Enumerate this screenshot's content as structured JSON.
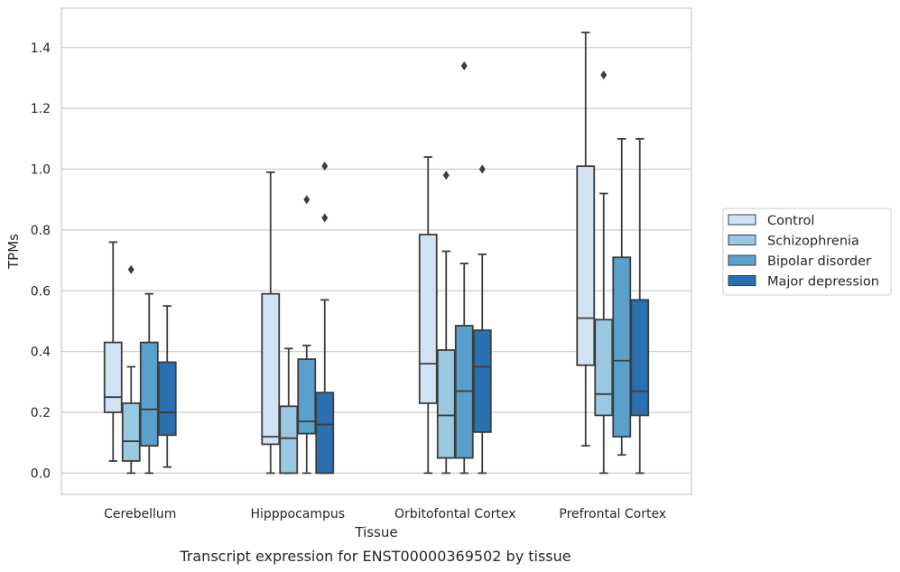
{
  "chart_data": {
    "type": "box",
    "caption": "Transcript expression for ENST00000369502 by tissue",
    "xlabel": "Tissue",
    "ylabel": "TPMs",
    "ylim": [
      -0.07,
      1.53
    ],
    "yticks": [
      "0.0",
      "0.2",
      "0.4",
      "0.6",
      "0.8",
      "1.0",
      "1.2",
      "1.4"
    ],
    "grid": "horizontal",
    "legend_position": "right",
    "categories": [
      "Cerebellum",
      "Hipppocampus",
      "Orbitofontal Cortex",
      "Prefrontal Cortex"
    ],
    "series": [
      {
        "name": "Control",
        "color": "#d1e3f3",
        "boxes": [
          {
            "min": 0.04,
            "q1": 0.2,
            "median": 0.25,
            "q3": 0.43,
            "max": 0.76,
            "outliers": []
          },
          {
            "min": 0.0,
            "q1": 0.095,
            "median": 0.12,
            "q3": 0.59,
            "max": 0.99,
            "outliers": []
          },
          {
            "min": 0.0,
            "q1": 0.23,
            "median": 0.36,
            "q3": 0.785,
            "max": 1.04,
            "outliers": []
          },
          {
            "min": 0.09,
            "q1": 0.355,
            "median": 0.51,
            "q3": 1.01,
            "max": 1.45,
            "outliers": []
          }
        ]
      },
      {
        "name": "Schizophrenia",
        "color": "#9ac8e0",
        "boxes": [
          {
            "min": 0.0,
            "q1": 0.04,
            "median": 0.105,
            "q3": 0.23,
            "max": 0.35,
            "outliers": [
              0.67
            ]
          },
          {
            "min": 0.0,
            "q1": 0.0,
            "median": 0.115,
            "q3": 0.22,
            "max": 0.41,
            "outliers": []
          },
          {
            "min": 0.0,
            "q1": 0.05,
            "median": 0.19,
            "q3": 0.405,
            "max": 0.73,
            "outliers": [
              0.98
            ]
          },
          {
            "min": 0.0,
            "q1": 0.19,
            "median": 0.26,
            "q3": 0.505,
            "max": 0.92,
            "outliers": [
              1.31
            ]
          }
        ]
      },
      {
        "name": "Bipolar disorder",
        "color": "#5aa0cd",
        "boxes": [
          {
            "min": 0.0,
            "q1": 0.09,
            "median": 0.21,
            "q3": 0.43,
            "max": 0.59,
            "outliers": []
          },
          {
            "min": 0.0,
            "q1": 0.13,
            "median": 0.17,
            "q3": 0.375,
            "max": 0.42,
            "outliers": [
              0.9
            ]
          },
          {
            "min": 0.0,
            "q1": 0.05,
            "median": 0.27,
            "q3": 0.485,
            "max": 0.69,
            "outliers": [
              1.34
            ]
          },
          {
            "min": 0.06,
            "q1": 0.12,
            "median": 0.37,
            "q3": 0.71,
            "max": 1.1,
            "outliers": []
          }
        ]
      },
      {
        "name": "Major depression",
        "color": "#2a6fb0",
        "boxes": [
          {
            "min": 0.02,
            "q1": 0.125,
            "median": 0.2,
            "q3": 0.365,
            "max": 0.55,
            "outliers": []
          },
          {
            "min": 0.0,
            "q1": 0.0,
            "median": 0.16,
            "q3": 0.265,
            "max": 0.57,
            "outliers": [
              0.84,
              1.01
            ]
          },
          {
            "min": 0.0,
            "q1": 0.135,
            "median": 0.35,
            "q3": 0.47,
            "max": 0.72,
            "outliers": [
              1.0
            ]
          },
          {
            "min": 0.0,
            "q1": 0.19,
            "median": 0.27,
            "q3": 0.57,
            "max": 1.1,
            "outliers": []
          }
        ]
      }
    ]
  }
}
